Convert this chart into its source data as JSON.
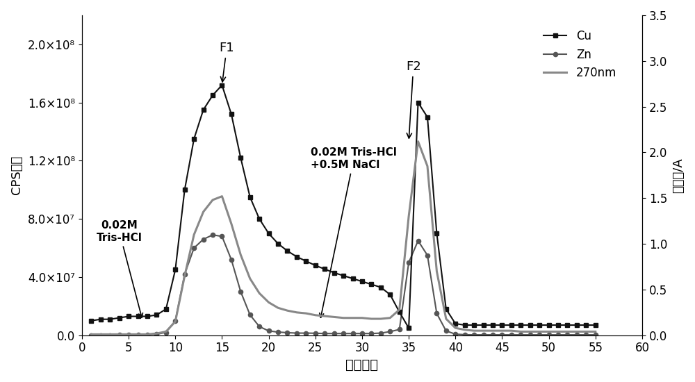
{
  "title": "",
  "xlabel": "试验管号",
  "ylabel_left": "CPS计数",
  "ylabel_right": "吸光度/A",
  "xlim": [
    0,
    60
  ],
  "ylim_left": [
    0,
    220000000.0
  ],
  "ylim_right": [
    0,
    3.5
  ],
  "xticks": [
    0,
    5,
    10,
    15,
    20,
    25,
    30,
    35,
    40,
    45,
    50,
    55,
    60
  ],
  "yticks_left": [
    0,
    40000000.0,
    80000000.0,
    120000000.0,
    160000000.0,
    200000000.0
  ],
  "yticks_right": [
    0.0,
    0.5,
    1.0,
    1.5,
    2.0,
    2.5,
    3.0,
    3.5
  ],
  "background_color": "#ffffff",
  "Cu_color": "#111111",
  "Zn_color": "#555555",
  "nm270_color": "#888888",
  "Cu_x": [
    1,
    2,
    3,
    4,
    5,
    6,
    7,
    8,
    9,
    10,
    11,
    12,
    13,
    14,
    15,
    16,
    17,
    18,
    19,
    20,
    21,
    22,
    23,
    24,
    25,
    26,
    27,
    28,
    29,
    30,
    31,
    32,
    33,
    34,
    35,
    36,
    37,
    38,
    39,
    40,
    41,
    42,
    43,
    44,
    45,
    46,
    47,
    48,
    49,
    50,
    51,
    52,
    53,
    54,
    55
  ],
  "Cu_y": [
    10000000.0,
    11000000.0,
    11000000.0,
    12000000.0,
    13000000.0,
    13000000.0,
    13000000.0,
    14000000.0,
    18000000.0,
    45000000.0,
    100000000.0,
    135000000.0,
    155000000.0,
    165000000.0,
    172000000.0,
    152000000.0,
    122000000.0,
    95000000.0,
    80000000.0,
    70000000.0,
    63000000.0,
    58000000.0,
    54000000.0,
    51000000.0,
    48000000.0,
    45500000.0,
    43000000.0,
    41000000.0,
    39000000.0,
    37000000.0,
    35000000.0,
    33000000.0,
    28000000.0,
    16000000.0,
    5000000.0,
    160000000.0,
    150000000.0,
    70000000.0,
    18000000.0,
    8000000.0,
    7000000.0,
    7000000.0,
    7000000.0,
    7000000.0,
    7000000.0,
    7000000.0,
    7000000.0,
    7000000.0,
    7000000.0,
    7000000.0,
    7000000.0,
    7000000.0,
    7000000.0,
    7000000.0,
    7000000.0
  ],
  "Zn_x": [
    1,
    2,
    3,
    4,
    5,
    6,
    7,
    8,
    9,
    10,
    11,
    12,
    13,
    14,
    15,
    16,
    17,
    18,
    19,
    20,
    21,
    22,
    23,
    24,
    25,
    26,
    27,
    28,
    29,
    30,
    31,
    32,
    33,
    34,
    35,
    36,
    37,
    38,
    39,
    40,
    41,
    42,
    43,
    44,
    45,
    46,
    47,
    48,
    49,
    50,
    51,
    52,
    53,
    54,
    55
  ],
  "Zn_y": [
    50000.0,
    50000.0,
    100000.0,
    200000.0,
    300000.0,
    400000.0,
    500000.0,
    700000.0,
    2000000.0,
    10000000.0,
    42000000.0,
    60000000.0,
    66000000.0,
    69000000.0,
    68000000.0,
    52000000.0,
    30000000.0,
    14000000.0,
    6000000.0,
    3000000.0,
    2200000.0,
    1800000.0,
    1500000.0,
    1500000.0,
    1400000.0,
    1200000.0,
    1200000.0,
    1200000.0,
    1200000.0,
    1200000.0,
    1200000.0,
    1500000.0,
    2500000.0,
    4000000.0,
    50000000.0,
    65000000.0,
    55000000.0,
    15000000.0,
    3000000.0,
    800000.0,
    400000.0,
    300000.0,
    300000.0,
    300000.0,
    300000.0,
    300000.0,
    300000.0,
    300000.0,
    300000.0,
    300000.0,
    300000.0,
    300000.0,
    300000.0,
    300000.0,
    300000.0
  ],
  "nm270_x": [
    1,
    2,
    3,
    4,
    5,
    6,
    7,
    8,
    9,
    10,
    11,
    12,
    13,
    14,
    15,
    16,
    17,
    18,
    19,
    20,
    21,
    22,
    23,
    24,
    25,
    26,
    27,
    28,
    29,
    30,
    31,
    32,
    33,
    34,
    35,
    36,
    37,
    38,
    39,
    40,
    41,
    42,
    43,
    44,
    45,
    46,
    47,
    48,
    49,
    50,
    51,
    52,
    53,
    54,
    55
  ],
  "nm270_y": [
    0.01,
    0.01,
    0.01,
    0.01,
    0.01,
    0.01,
    0.01,
    0.02,
    0.04,
    0.15,
    0.65,
    1.1,
    1.35,
    1.48,
    1.52,
    1.22,
    0.88,
    0.62,
    0.46,
    0.36,
    0.3,
    0.27,
    0.25,
    0.24,
    0.22,
    0.21,
    0.2,
    0.19,
    0.19,
    0.19,
    0.18,
    0.18,
    0.19,
    0.28,
    1.3,
    2.12,
    1.85,
    0.7,
    0.18,
    0.08,
    0.06,
    0.05,
    0.05,
    0.05,
    0.05,
    0.05,
    0.04,
    0.04,
    0.04,
    0.04,
    0.04,
    0.04,
    0.04,
    0.04,
    0.04
  ]
}
